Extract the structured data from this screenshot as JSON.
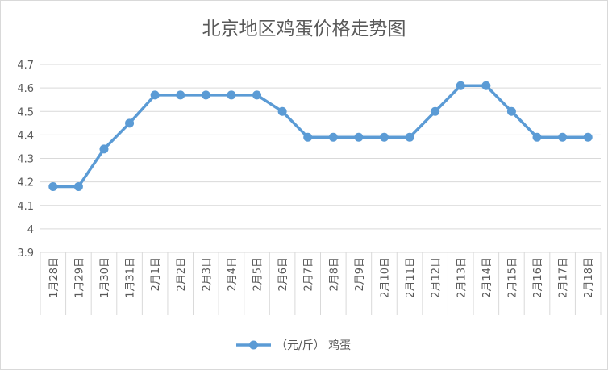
{
  "chart_data": {
    "type": "line",
    "title": "北京地区鸡蛋价格走势图",
    "xlabel": "",
    "ylabel": "",
    "categories": [
      "1月28日",
      "1月29日",
      "1月30日",
      "1月31日",
      "2月1日",
      "2月2日",
      "2月3日",
      "2月4日",
      "2月5日",
      "2月6日",
      "2月7日",
      "2月8日",
      "2月9日",
      "2月10日",
      "2月11日",
      "2月12日",
      "2月13日",
      "2月14日",
      "2月15日",
      "2月16日",
      "2月17日",
      "2月18日"
    ],
    "series": [
      {
        "name": "（元/斤） 鸡蛋",
        "values": [
          4.18,
          4.18,
          4.34,
          4.45,
          4.57,
          4.57,
          4.57,
          4.57,
          4.57,
          4.5,
          4.39,
          4.39,
          4.39,
          4.39,
          4.39,
          4.5,
          4.61,
          4.61,
          4.5,
          4.39,
          4.39,
          4.39
        ]
      }
    ],
    "ylim": [
      3.9,
      4.7
    ],
    "yticks": [
      "3.9",
      "4",
      "4.1",
      "4.2",
      "4.3",
      "4.4",
      "4.5",
      "4.6",
      "4.7"
    ],
    "grid": true,
    "legend": "bottom",
    "colors": {
      "line": "#5b9bd5",
      "grid": "#d9d9d9",
      "text": "#595959"
    }
  }
}
